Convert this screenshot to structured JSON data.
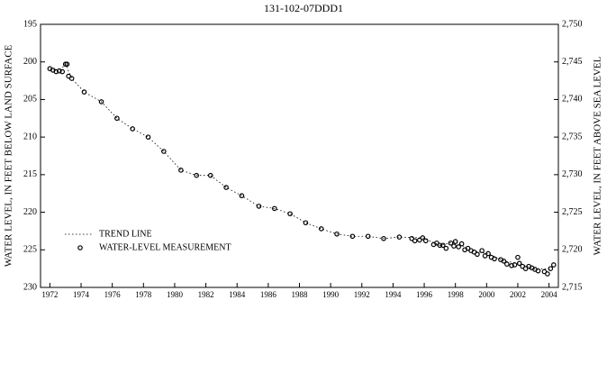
{
  "chart_data": {
    "type": "scatter",
    "title": "131-102-07DDD1",
    "y_label": "WATER LEVEL, IN FEET BELOW LAND SURFACE",
    "y2_label": "WATER LEVEL, IN FEET ABOVE SEA LEVEL",
    "xlim": [
      1971.4,
      2004.6
    ],
    "xticks": [
      1972,
      1974,
      1976,
      1978,
      1980,
      1982,
      1984,
      1986,
      1988,
      1990,
      1992,
      1994,
      1996,
      1998,
      2000,
      2002,
      2004
    ],
    "ylim": [
      230,
      195
    ],
    "yticks": [
      195,
      200,
      205,
      210,
      215,
      220,
      225,
      230
    ],
    "y2lim": [
      2715,
      2750
    ],
    "y2ticks": [
      {
        "value": 2715,
        "label": "2,715"
      },
      {
        "value": 2720,
        "label": "2,720"
      },
      {
        "value": 2725,
        "label": "2,725"
      },
      {
        "value": 2730,
        "label": "2,730"
      },
      {
        "value": 2735,
        "label": "2,735"
      },
      {
        "value": 2740,
        "label": "2,740"
      },
      {
        "value": 2745,
        "label": "2,745"
      },
      {
        "value": 2750,
        "label": "2,750"
      }
    ],
    "legend": "lower left",
    "series": [
      {
        "name": "TREND LINE",
        "color": "#000000",
        "style": "line",
        "x": [
          1972.0,
          1972.6,
          1973.0,
          1973.4,
          1974.2,
          1975.3,
          1976.3,
          1977.3,
          1978.3,
          1979.3,
          1980.4,
          1981.4,
          1982.3,
          1983.3,
          1984.3,
          1985.4,
          1986.4,
          1987.4,
          1988.4,
          1989.4,
          1990.4,
          1991.4,
          1992.4,
          1993.4,
          1994.4,
          1995.9,
          1997.0,
          1998.0,
          1999.0,
          2000.1,
          2001.1,
          2002.1,
          2003.1,
          2004.1,
          2004.3
        ],
        "values": [
          200.9,
          201.2,
          200.3,
          202.2,
          204.0,
          205.3,
          207.5,
          208.9,
          210.0,
          211.9,
          214.4,
          215.1,
          215.1,
          216.7,
          217.8,
          219.2,
          219.5,
          220.2,
          221.4,
          222.2,
          222.9,
          223.2,
          223.2,
          223.5,
          223.3,
          223.4,
          224.4,
          223.9,
          225.1,
          225.5,
          226.5,
          226.8,
          227.6,
          227.5,
          227.0
        ]
      },
      {
        "name": "WATER-LEVEL MEASUREMENT",
        "color": "#000000",
        "style": "marker",
        "x": [
          1972.0,
          1972.2,
          1972.4,
          1972.6,
          1972.8,
          1973.0,
          1973.1,
          1973.2,
          1973.4,
          1974.2,
          1975.3,
          1976.3,
          1977.3,
          1978.3,
          1979.3,
          1980.4,
          1981.4,
          1982.3,
          1983.3,
          1984.3,
          1985.4,
          1986.4,
          1987.4,
          1988.4,
          1989.4,
          1990.4,
          1991.4,
          1992.4,
          1993.4,
          1994.4,
          1995.2,
          1995.4,
          1995.7,
          1995.9,
          1996.1,
          1996.6,
          1996.8,
          1997.0,
          1997.2,
          1997.4,
          1997.7,
          1997.9,
          1998.0,
          1998.2,
          1998.4,
          1998.6,
          1998.8,
          1999.0,
          1999.2,
          1999.4,
          1999.7,
          1999.9,
          2000.1,
          2000.3,
          2000.5,
          2000.9,
          2001.1,
          2001.3,
          2001.6,
          2001.8,
          2002.0,
          2002.1,
          2002.3,
          2002.5,
          2002.7,
          2002.9,
          2003.1,
          2003.3,
          2003.7,
          2003.9,
          2004.1,
          2004.3
        ],
        "values": [
          200.9,
          201.1,
          201.3,
          201.2,
          201.3,
          200.3,
          200.3,
          201.9,
          202.2,
          204.0,
          205.3,
          207.5,
          208.9,
          210.0,
          211.9,
          214.4,
          215.1,
          215.1,
          216.7,
          217.8,
          219.2,
          219.5,
          220.2,
          221.4,
          222.2,
          222.9,
          223.2,
          223.2,
          223.5,
          223.3,
          223.5,
          223.8,
          223.7,
          223.4,
          223.8,
          224.3,
          224.1,
          224.4,
          224.4,
          224.8,
          224.1,
          224.5,
          223.9,
          224.6,
          224.2,
          225.0,
          224.8,
          225.1,
          225.3,
          225.6,
          225.1,
          225.8,
          225.5,
          226.0,
          226.2,
          226.3,
          226.5,
          226.9,
          227.1,
          227.0,
          226.0,
          226.8,
          227.2,
          227.5,
          227.2,
          227.4,
          227.6,
          227.8,
          227.9,
          228.2,
          227.5,
          227.0
        ]
      }
    ]
  }
}
